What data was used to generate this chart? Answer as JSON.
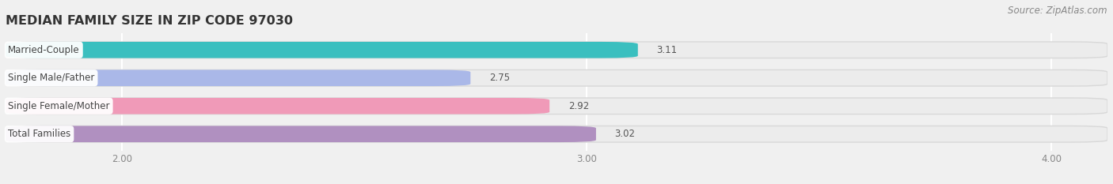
{
  "title": "MEDIAN FAMILY SIZE IN ZIP CODE 97030",
  "source": "Source: ZipAtlas.com",
  "categories": [
    "Married-Couple",
    "Single Male/Father",
    "Single Female/Mother",
    "Total Families"
  ],
  "values": [
    3.11,
    2.75,
    2.92,
    3.02
  ],
  "bar_colors": [
    "#3abfbf",
    "#aab8e8",
    "#f09ab8",
    "#b090c0"
  ],
  "bar_bg_color": "#ebebeb",
  "xlim": [
    1.75,
    4.12
  ],
  "xticks": [
    2.0,
    3.0,
    4.0
  ],
  "xtick_labels": [
    "2.00",
    "3.00",
    "4.00"
  ],
  "background_color": "#f0f0f0",
  "title_fontsize": 11.5,
  "label_fontsize": 8.5,
  "value_fontsize": 8.5,
  "source_fontsize": 8.5,
  "bar_height": 0.58,
  "grid_color": "#ffffff",
  "text_color": "#555555",
  "tick_color": "#888888"
}
